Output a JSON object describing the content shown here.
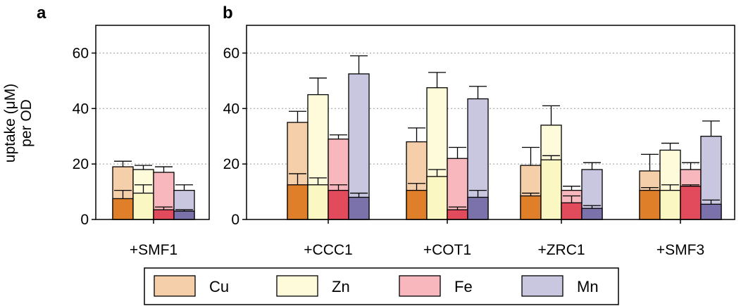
{
  "figure": {
    "ylabel_line1": "uptake (μM)",
    "ylabel_line2": "per OD",
    "colors": {
      "Cu": {
        "light": "#f5cfa9",
        "dark": "#e07f2a"
      },
      "Zn": {
        "light": "#fefbdb",
        "dark": "#fbf7c2"
      },
      "Fe": {
        "light": "#f7b7bc",
        "dark": "#e24b5b"
      },
      "Mn": {
        "light": "#c9c6df",
        "dark": "#7c72ab"
      }
    }
  },
  "legend": {
    "items": [
      {
        "label": "Cu",
        "metal": "Cu"
      },
      {
        "label": "Zn",
        "metal": "Zn"
      },
      {
        "label": "Fe",
        "metal": "Fe"
      },
      {
        "label": "Mn",
        "metal": "Mn"
      }
    ]
  },
  "chart_data": [
    {
      "panel": "a",
      "type": "bar",
      "stacked_overlay": true,
      "ylim": [
        0,
        70
      ],
      "yticks": [
        0,
        20,
        40,
        60
      ],
      "grid": "y dotted at 20, 40, 60",
      "categories": [
        "+SMF1"
      ],
      "series_order": [
        "Cu",
        "Zn",
        "Fe",
        "Mn"
      ],
      "groups": [
        {
          "label": "+SMF1",
          "bars": [
            {
              "metal": "Cu",
              "total": 19,
              "total_err": 2,
              "base": 7.5,
              "base_err": 3
            },
            {
              "metal": "Zn",
              "total": 18,
              "total_err": 1.5,
              "base": 9.5,
              "base_err": 3
            },
            {
              "metal": "Fe",
              "total": 17,
              "total_err": 2,
              "base": 3.5,
              "base_err": 1
            },
            {
              "metal": "Mn",
              "total": 10.5,
              "total_err": 2,
              "base": 3,
              "base_err": 0.5
            }
          ]
        }
      ]
    },
    {
      "panel": "b",
      "type": "bar",
      "stacked_overlay": true,
      "ylim": [
        0,
        70
      ],
      "yticks": [
        0,
        20,
        40,
        60
      ],
      "grid": "y dotted at 20, 40, 60",
      "categories": [
        "+CCC1",
        "+COT1",
        "+ZRC1",
        "+SMF3"
      ],
      "series_order": [
        "Cu",
        "Zn",
        "Fe",
        "Mn"
      ],
      "groups": [
        {
          "label": "+CCC1",
          "bars": [
            {
              "metal": "Cu",
              "total": 35,
              "total_err": 4,
              "base": 12.5,
              "base_err": 4
            },
            {
              "metal": "Zn",
              "total": 45,
              "total_err": 6,
              "base": 12.5,
              "base_err": 2.5
            },
            {
              "metal": "Fe",
              "total": 29,
              "total_err": 1.5,
              "base": 10.5,
              "base_err": 2
            },
            {
              "metal": "Mn",
              "total": 52.5,
              "total_err": 6.5,
              "base": 8,
              "base_err": 1.5
            }
          ]
        },
        {
          "label": "+COT1",
          "bars": [
            {
              "metal": "Cu",
              "total": 28,
              "total_err": 5,
              "base": 10.5,
              "base_err": 2.5
            },
            {
              "metal": "Zn",
              "total": 47.5,
              "total_err": 5.5,
              "base": 15.5,
              "base_err": 2.5
            },
            {
              "metal": "Fe",
              "total": 22,
              "total_err": 4,
              "base": 3.5,
              "base_err": 1
            },
            {
              "metal": "Mn",
              "total": 43.5,
              "total_err": 4.5,
              "base": 8,
              "base_err": 2.5
            }
          ]
        },
        {
          "label": "+ZRC1",
          "bars": [
            {
              "metal": "Cu",
              "total": 19.5,
              "total_err": 6.5,
              "base": 8.5,
              "base_err": 1
            },
            {
              "metal": "Zn",
              "total": 34,
              "total_err": 7,
              "base": 21.5,
              "base_err": 1.5
            },
            {
              "metal": "Fe",
              "total": 10.5,
              "total_err": 1.5,
              "base": 6,
              "base_err": 2.5
            },
            {
              "metal": "Mn",
              "total": 18,
              "total_err": 2.5,
              "base": 4,
              "base_err": 1
            }
          ]
        },
        {
          "label": "+SMF3",
          "bars": [
            {
              "metal": "Cu",
              "total": 17.5,
              "total_err": 6,
              "base": 10.5,
              "base_err": 1
            },
            {
              "metal": "Zn",
              "total": 25,
              "total_err": 2.5,
              "base": 10.5,
              "base_err": 2
            },
            {
              "metal": "Fe",
              "total": 18,
              "total_err": 2.5,
              "base": 12,
              "base_err": 0.5
            },
            {
              "metal": "Mn",
              "total": 30,
              "total_err": 5.5,
              "base": 5.5,
              "base_err": 1.5
            }
          ]
        }
      ]
    }
  ]
}
